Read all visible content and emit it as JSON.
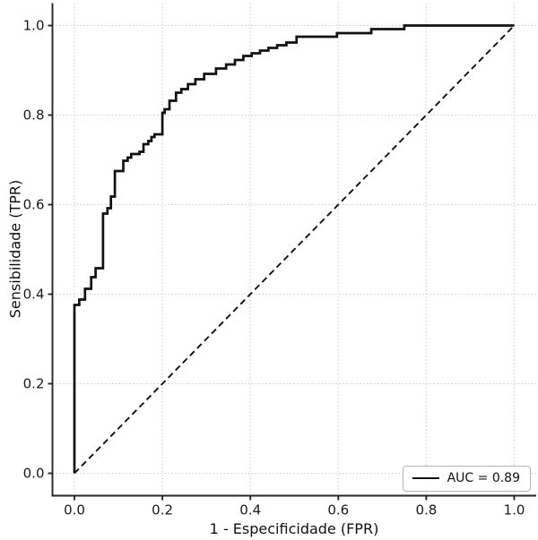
{
  "figure": {
    "background": "#ffffff"
  },
  "chart_data": {
    "type": "line",
    "subtype": "roc-curve",
    "title": "",
    "xlabel": "1 - Especificidade (FPR)",
    "ylabel": "Sensibilidade (TPR)",
    "xlim": [
      -0.05,
      1.05
    ],
    "ylim": [
      -0.05,
      1.05
    ],
    "grid": "dotted",
    "x_ticks": {
      "values": [
        0.0,
        0.2,
        0.4,
        0.6,
        0.8,
        1.0
      ],
      "labels": [
        "0.0",
        "0.2",
        "0.4",
        "0.6",
        "0.8",
        "1.0"
      ]
    },
    "y_ticks": {
      "values": [
        0.0,
        0.2,
        0.4,
        0.6,
        0.8,
        1.0
      ],
      "labels": [
        "0.0",
        "0.2",
        "0.4",
        "0.6",
        "0.8",
        "1.0"
      ]
    },
    "auc": 0.89,
    "legend": {
      "position": "lower right",
      "entries": [
        {
          "label": "AUC = 0.89",
          "line": "solid",
          "color": "#111111"
        }
      ]
    },
    "series": [
      {
        "id": "roc-curve",
        "name": "ROC",
        "style": "solid",
        "step": true,
        "color": "#111111",
        "width": 2.7,
        "points": [
          [
            0.0,
            0.0
          ],
          [
            0.0,
            0.376
          ],
          [
            0.011,
            0.388
          ],
          [
            0.024,
            0.412
          ],
          [
            0.038,
            0.438
          ],
          [
            0.048,
            0.458
          ],
          [
            0.065,
            0.58
          ],
          [
            0.075,
            0.592
          ],
          [
            0.083,
            0.618
          ],
          [
            0.092,
            0.675
          ],
          [
            0.111,
            0.698
          ],
          [
            0.121,
            0.705
          ],
          [
            0.129,
            0.713
          ],
          [
            0.148,
            0.718
          ],
          [
            0.157,
            0.735
          ],
          [
            0.168,
            0.742
          ],
          [
            0.175,
            0.751
          ],
          [
            0.182,
            0.757
          ],
          [
            0.2,
            0.805
          ],
          [
            0.205,
            0.813
          ],
          [
            0.216,
            0.832
          ],
          [
            0.231,
            0.85
          ],
          [
            0.243,
            0.858
          ],
          [
            0.258,
            0.869
          ],
          [
            0.275,
            0.88
          ],
          [
            0.295,
            0.892
          ],
          [
            0.322,
            0.904
          ],
          [
            0.345,
            0.913
          ],
          [
            0.365,
            0.923
          ],
          [
            0.384,
            0.932
          ],
          [
            0.403,
            0.938
          ],
          [
            0.422,
            0.944
          ],
          [
            0.441,
            0.95
          ],
          [
            0.461,
            0.956
          ],
          [
            0.482,
            0.962
          ],
          [
            0.505,
            0.975
          ],
          [
            0.597,
            0.983
          ],
          [
            0.675,
            0.992
          ],
          [
            0.75,
            1.0
          ],
          [
            1.0,
            1.0
          ]
        ]
      },
      {
        "id": "chance-diagonal",
        "name": "chance line",
        "style": "dashed",
        "step": false,
        "color": "#111111",
        "width": 1.9,
        "points": [
          [
            0.0,
            0.0
          ],
          [
            1.0,
            1.0
          ]
        ]
      }
    ],
    "colors": {
      "curve": "#111111",
      "diagonal": "#111111",
      "grid": "#c9c9c9",
      "spine": "#262626",
      "tick_label": "#1a1a1a",
      "legend_border": "#b4b4b4",
      "background": "#ffffff"
    }
  }
}
